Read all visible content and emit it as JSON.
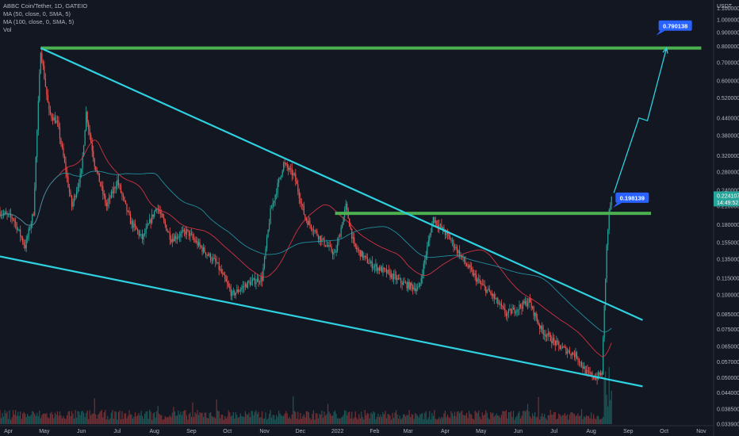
{
  "legend": {
    "symbol": "ABBC Coin/Tether, 1D, GATEIO",
    "ma50": "MA (50, close, 0, SMA, 5)",
    "ma100": "MA (100, close, 0, SMA, 5)",
    "vol": "Vol"
  },
  "colors": {
    "background": "#131722",
    "up": "#26a69a",
    "down": "#ef5350",
    "ma50": "#f23645",
    "ma100": "#22a2b4",
    "trendline": "#2ed1e0",
    "level": "#4caf50",
    "label": "#2962ff"
  },
  "chart_data": {
    "type": "candlestick",
    "currency": "USDT",
    "y_scale": "log",
    "y_ticks": [
      "1.100000",
      "1.000000",
      "0.900000",
      "0.800000",
      "0.700000",
      "0.600000",
      "0.520000",
      "0.440000",
      "0.380000",
      "0.320000",
      "0.280000",
      "0.240000",
      "0.210000",
      "0.180000",
      "0.155000",
      "0.135000",
      "0.115000",
      "0.100000",
      "0.085000",
      "0.075000",
      "0.065000",
      "0.057000",
      "0.050000",
      "0.044000",
      "0.038500",
      "0.033900"
    ],
    "x_ticks": [
      "Apr",
      "May",
      "Jun",
      "Jul",
      "Aug",
      "Sep",
      "Oct",
      "Nov",
      "Dec",
      "2022",
      "Feb",
      "Mar",
      "Apr",
      "May",
      "Jun",
      "Jul",
      "Aug",
      "Sep",
      "Oct",
      "Nov"
    ],
    "x_range": [
      "2021-03-25",
      "2022-11-10"
    ],
    "y_range": [
      0.0339,
      1.15
    ],
    "resistance_levels": [
      {
        "price": 0.79,
        "from": "2021-04-28",
        "to": "2022-11-01"
      },
      {
        "price": 0.198,
        "from": "2021-12-30",
        "to": "2022-09-20"
      }
    ],
    "trendlines": [
      {
        "from": {
          "date": "2021-04-28",
          "price": 0.79
        },
        "to": {
          "date": "2022-09-13",
          "price": 0.081
        }
      },
      {
        "from": {
          "date": "2021-03-25",
          "price": 0.138
        },
        "to": {
          "date": "2022-09-13",
          "price": 0.0465
        }
      }
    ],
    "projection": [
      {
        "date": "2022-08-20",
        "price": 0.235
      },
      {
        "date": "2022-09-10",
        "price": 0.44
      },
      {
        "date": "2022-09-17",
        "price": 0.43
      },
      {
        "date": "2022-10-03",
        "price": 0.79
      }
    ],
    "labels": [
      {
        "text": "0.790138",
        "date": "2022-10-03",
        "price": 0.95
      },
      {
        "text": "0.198139",
        "date": "2022-08-28",
        "price": 0.225
      }
    ],
    "last_price": {
      "value": "0.224107",
      "countdown": "14:49:52",
      "price": 0.2241
    },
    "closes": [
      {
        "date": "2021-03-25",
        "price": 0.2
      },
      {
        "date": "2021-04-05",
        "price": 0.19
      },
      {
        "date": "2021-04-15",
        "price": 0.15
      },
      {
        "date": "2021-04-22",
        "price": 0.2
      },
      {
        "date": "2021-04-28",
        "price": 0.78
      },
      {
        "date": "2021-05-05",
        "price": 0.46
      },
      {
        "date": "2021-05-12",
        "price": 0.42
      },
      {
        "date": "2021-05-18",
        "price": 0.3
      },
      {
        "date": "2021-05-24",
        "price": 0.21
      },
      {
        "date": "2021-06-01",
        "price": 0.28
      },
      {
        "date": "2021-06-05",
        "price": 0.46
      },
      {
        "date": "2021-06-12",
        "price": 0.3
      },
      {
        "date": "2021-06-22",
        "price": 0.21
      },
      {
        "date": "2021-07-01",
        "price": 0.26
      },
      {
        "date": "2021-07-12",
        "price": 0.185
      },
      {
        "date": "2021-07-22",
        "price": 0.16
      },
      {
        "date": "2021-08-03",
        "price": 0.21
      },
      {
        "date": "2021-08-15",
        "price": 0.16
      },
      {
        "date": "2021-08-28",
        "price": 0.17
      },
      {
        "date": "2021-09-08",
        "price": 0.15
      },
      {
        "date": "2021-09-22",
        "price": 0.13
      },
      {
        "date": "2021-10-05",
        "price": 0.1
      },
      {
        "date": "2021-10-18",
        "price": 0.11
      },
      {
        "date": "2021-10-30",
        "price": 0.115
      },
      {
        "date": "2021-11-06",
        "price": 0.2
      },
      {
        "date": "2021-11-17",
        "price": 0.3
      },
      {
        "date": "2021-11-26",
        "price": 0.27
      },
      {
        "date": "2021-12-05",
        "price": 0.19
      },
      {
        "date": "2021-12-18",
        "price": 0.16
      },
      {
        "date": "2021-12-30",
        "price": 0.14
      },
      {
        "date": "2022-01-08",
        "price": 0.21
      },
      {
        "date": "2022-01-15",
        "price": 0.15
      },
      {
        "date": "2022-01-28",
        "price": 0.13
      },
      {
        "date": "2022-02-12",
        "price": 0.12
      },
      {
        "date": "2022-02-25",
        "price": 0.11
      },
      {
        "date": "2022-03-10",
        "price": 0.105
      },
      {
        "date": "2022-03-22",
        "price": 0.19
      },
      {
        "date": "2022-04-05",
        "price": 0.16
      },
      {
        "date": "2022-04-18",
        "price": 0.13
      },
      {
        "date": "2022-04-30",
        "price": 0.11
      },
      {
        "date": "2022-05-10",
        "price": 0.1
      },
      {
        "date": "2022-05-22",
        "price": 0.085
      },
      {
        "date": "2022-06-01",
        "price": 0.09
      },
      {
        "date": "2022-06-10",
        "price": 0.095
      },
      {
        "date": "2022-06-20",
        "price": 0.075
      },
      {
        "date": "2022-07-05",
        "price": 0.065
      },
      {
        "date": "2022-07-20",
        "price": 0.06
      },
      {
        "date": "2022-07-28",
        "price": 0.052
      },
      {
        "date": "2022-08-05",
        "price": 0.05
      },
      {
        "date": "2022-08-10",
        "price": 0.052
      },
      {
        "date": "2022-08-12",
        "price": 0.09
      },
      {
        "date": "2022-08-14",
        "price": 0.15
      },
      {
        "date": "2022-08-16",
        "price": 0.2
      },
      {
        "date": "2022-08-18",
        "price": 0.224
      }
    ]
  }
}
